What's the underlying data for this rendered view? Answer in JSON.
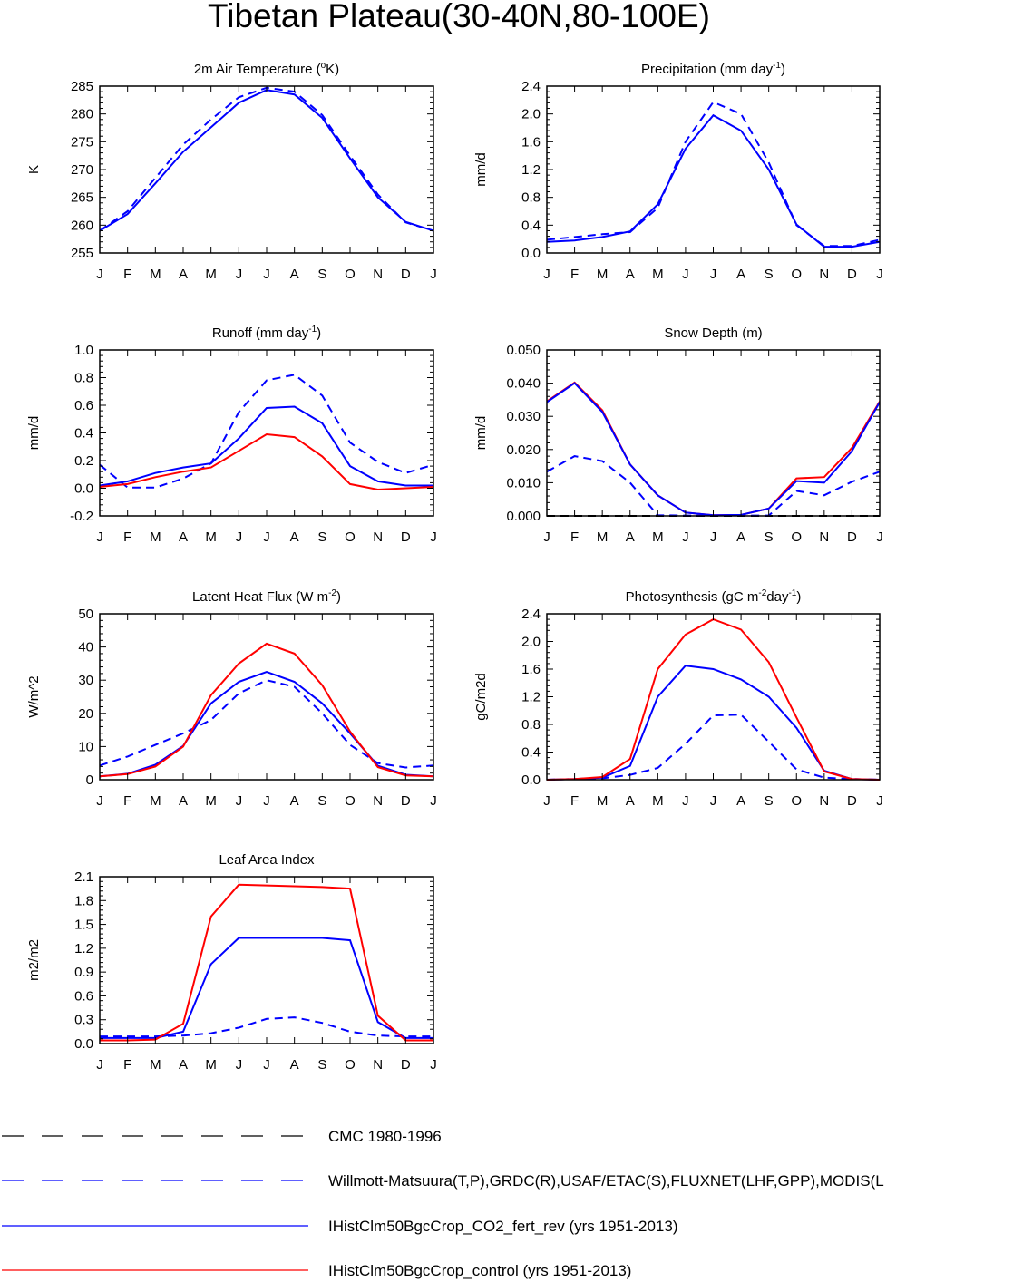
{
  "page_title": "Tibetan Plateau(30-40N,80-100E)",
  "months": [
    "J",
    "F",
    "M",
    "A",
    "M",
    "J",
    "J",
    "A",
    "S",
    "O",
    "N",
    "D",
    "J"
  ],
  "legend": [
    {
      "label": "CMC 1980-1996",
      "color": "#000000",
      "dash": true
    },
    {
      "label": "Willmott-Matsuura(T,P),GRDC(R),USAF/ETAC(S),FLUXNET(LHF,GPP),MODIS(L",
      "color": "#0000ff",
      "dash": true
    },
    {
      "label": "IHistClm50BgcCrop_CO2_fert_rev (yrs 1951-2013)",
      "color": "#0000ff",
      "dash": false
    },
    {
      "label": "IHistClm50BgcCrop_control (yrs 1951-2013)",
      "color": "#ff0000",
      "dash": false
    }
  ],
  "chart_data": [
    {
      "type": "line",
      "title": "2m Air Temperature (",
      "title_sup": "o",
      "title_tail": "K)",
      "ylabel": "K",
      "ylim": [
        255,
        285
      ],
      "yticks": [
        "255",
        "260",
        "265",
        "270",
        "275",
        "280",
        "285"
      ],
      "x": [
        "J",
        "F",
        "M",
        "A",
        "M",
        "J",
        "J",
        "A",
        "S",
        "O",
        "N",
        "D",
        "J"
      ],
      "series": [
        {
          "name": "Willmott-Matsuura(T,P),GRDC(R),USAF/ETAC(S),FLUXNET(LHF,GPP),MODIS(L",
          "color": "#0000ff",
          "dash": true,
          "values": [
            259.0,
            262.5,
            268.5,
            274.5,
            279.0,
            283.0,
            284.7,
            284.0,
            279.8,
            272.5,
            265.5,
            260.5,
            259.0
          ]
        },
        {
          "name": "IHistClm50BgcCrop_CO2_fert_rev (yrs 1951-2013)",
          "color": "#0000ff",
          "dash": false,
          "values": [
            259.0,
            262.0,
            267.5,
            273.2,
            277.6,
            282.0,
            284.3,
            283.5,
            279.3,
            272.0,
            265.0,
            260.6,
            259.0
          ]
        }
      ]
    },
    {
      "type": "line",
      "title": "Precipitation (mm day",
      "title_sup": "-1",
      "title_tail": ")",
      "ylabel": "mm/d",
      "ylim": [
        0,
        2.4
      ],
      "yticks": [
        "0.0",
        "0.4",
        "0.8",
        "1.2",
        "1.6",
        "2.0",
        "2.4"
      ],
      "x": [
        "J",
        "F",
        "M",
        "A",
        "M",
        "J",
        "J",
        "A",
        "S",
        "O",
        "N",
        "D",
        "J"
      ],
      "series": [
        {
          "name": "Willmott-Matsuura(T,P),GRDC(R),USAF/ETAC(S),FLUXNET(LHF,GPP),MODIS(L",
          "color": "#0000ff",
          "dash": true,
          "values": [
            0.19,
            0.23,
            0.27,
            0.3,
            0.65,
            1.6,
            2.17,
            2.0,
            1.3,
            0.4,
            0.1,
            0.1,
            0.19
          ]
        },
        {
          "name": "IHistClm50BgcCrop_CO2_fert_rev (yrs 1951-2013)",
          "color": "#0000ff",
          "dash": false,
          "values": [
            0.16,
            0.18,
            0.23,
            0.31,
            0.7,
            1.5,
            1.98,
            1.76,
            1.2,
            0.41,
            0.09,
            0.09,
            0.16
          ]
        }
      ]
    },
    {
      "type": "line",
      "title": "Runoff (mm day",
      "title_sup": "-1",
      "title_tail": ")",
      "ylabel": "mm/d",
      "ylim": [
        -0.2,
        1.0
      ],
      "yticks": [
        "-0.2",
        "0.0",
        "0.2",
        "0.4",
        "0.6",
        "0.8",
        "1.0"
      ],
      "x": [
        "J",
        "F",
        "M",
        "A",
        "M",
        "J",
        "J",
        "A",
        "S",
        "O",
        "N",
        "D",
        "J"
      ],
      "series": [
        {
          "name": "Willmott-Matsuura(T,P),GRDC(R),USAF/ETAC(S),FLUXNET(LHF,GPP),MODIS(L",
          "color": "#0000ff",
          "dash": true,
          "values": [
            0.17,
            0.005,
            0.005,
            0.07,
            0.18,
            0.55,
            0.78,
            0.82,
            0.67,
            0.33,
            0.19,
            0.11,
            0.17
          ]
        },
        {
          "name": "IHistClm50BgcCrop_CO2_fert_rev (yrs 1951-2013)",
          "color": "#0000ff",
          "dash": false,
          "values": [
            0.02,
            0.05,
            0.11,
            0.15,
            0.18,
            0.36,
            0.58,
            0.59,
            0.47,
            0.16,
            0.05,
            0.02,
            0.02
          ]
        },
        {
          "name": "IHistClm50BgcCrop_control (yrs 1951-2013)",
          "color": "#ff0000",
          "dash": false,
          "values": [
            0.01,
            0.03,
            0.08,
            0.12,
            0.15,
            0.27,
            0.39,
            0.37,
            0.23,
            0.03,
            -0.01,
            0.0,
            0.01
          ]
        }
      ]
    },
    {
      "type": "line",
      "title": "Snow Depth (m)",
      "title_sup": "",
      "title_tail": "",
      "ylabel": "mm/d",
      "ylim": [
        0,
        0.05
      ],
      "yticks": [
        "0.000",
        "0.010",
        "0.020",
        "0.030",
        "0.040",
        "0.050"
      ],
      "x": [
        "J",
        "F",
        "M",
        "A",
        "M",
        "J",
        "J",
        "A",
        "S",
        "O",
        "N",
        "D",
        "J"
      ],
      "series": [
        {
          "name": "CMC 1980-1996",
          "color": "#000000",
          "dash": true,
          "values": [
            0,
            0,
            0,
            0,
            0,
            0,
            0,
            0,
            0,
            0,
            0,
            0,
            0
          ]
        },
        {
          "name": "Willmott-Matsuura(T,P),GRDC(R),USAF/ETAC(S),FLUXNET(LHF,GPP),MODIS(L",
          "color": "#0000ff",
          "dash": true,
          "values": [
            0.0133,
            0.018,
            0.0165,
            0.01,
            0.0002,
            0.0001,
            0.0001,
            0.0001,
            0.0001,
            0.0075,
            0.0062,
            0.0103,
            0.0133
          ]
        },
        {
          "name": "IHistClm50BgcCrop_control (yrs 1951-2013)",
          "color": "#ff0000",
          "dash": false,
          "values": [
            0.0345,
            0.0402,
            0.0318,
            0.0155,
            0.0062,
            0.001,
            0.0002,
            0.0003,
            0.0022,
            0.0113,
            0.0117,
            0.0205,
            0.0345
          ]
        },
        {
          "name": "IHistClm50BgcCrop_CO2_fert_rev (yrs 1951-2013)",
          "color": "#0000ff",
          "dash": false,
          "values": [
            0.0343,
            0.04,
            0.0313,
            0.0155,
            0.0062,
            0.001,
            0.0002,
            0.0003,
            0.0022,
            0.0105,
            0.01,
            0.0195,
            0.0343
          ]
        }
      ]
    },
    {
      "type": "line",
      "title": "Latent Heat Flux (W m",
      "title_sup": "-2",
      "title_tail": ")",
      "ylabel": "W/m^2",
      "ylim": [
        0,
        50
      ],
      "yticks": [
        "0",
        "10",
        "20",
        "30",
        "40",
        "50"
      ],
      "x": [
        "J",
        "F",
        "M",
        "A",
        "M",
        "J",
        "J",
        "A",
        "S",
        "O",
        "N",
        "D",
        "J"
      ],
      "series": [
        {
          "name": "Willmott-Matsuura(T,P),GRDC(R),USAF/ETAC(S),FLUXNET(LHF,GPP),MODIS(L",
          "color": "#0000ff",
          "dash": true,
          "values": [
            4.3,
            7.0,
            10.5,
            14.0,
            18.0,
            26.0,
            30.0,
            28.0,
            20.0,
            10.5,
            5.0,
            3.7,
            4.3
          ]
        },
        {
          "name": "IHistClm50BgcCrop_CO2_fert_rev (yrs 1951-2013)",
          "color": "#0000ff",
          "dash": false,
          "values": [
            1.0,
            1.8,
            4.5,
            10.2,
            23.0,
            29.5,
            32.5,
            29.5,
            23.0,
            14.0,
            4.2,
            1.5,
            1.0
          ]
        },
        {
          "name": "IHistClm50BgcCrop_control (yrs 1951-2013)",
          "color": "#ff0000",
          "dash": false,
          "values": [
            1.0,
            1.7,
            4.0,
            10.0,
            25.5,
            35.0,
            41.0,
            38.0,
            28.5,
            14.5,
            3.8,
            1.3,
            1.0
          ]
        }
      ]
    },
    {
      "type": "line",
      "title": "Photosynthesis (gC m",
      "title_sup": "-2",
      "title_tail": "day",
      "title_sup2": "-1",
      "title_tail2": ")",
      "ylabel": "gC/m2d",
      "ylim": [
        0,
        2.4
      ],
      "yticks": [
        "0.0",
        "0.4",
        "0.8",
        "1.2",
        "1.6",
        "2.0",
        "2.4"
      ],
      "x": [
        "J",
        "F",
        "M",
        "A",
        "M",
        "J",
        "J",
        "A",
        "S",
        "O",
        "N",
        "D",
        "J"
      ],
      "series": [
        {
          "name": "Willmott-Matsuura(T,P),GRDC(R),USAF/ETAC(S),FLUXNET(LHF,GPP),MODIS(L",
          "color": "#0000ff",
          "dash": true,
          "values": [
            0.0,
            0.01,
            0.02,
            0.07,
            0.17,
            0.52,
            0.93,
            0.94,
            0.55,
            0.15,
            0.03,
            0.01,
            0.0
          ]
        },
        {
          "name": "IHistClm50BgcCrop_CO2_fert_rev (yrs 1951-2013)",
          "color": "#0000ff",
          "dash": false,
          "values": [
            0.0,
            0.01,
            0.03,
            0.2,
            1.2,
            1.65,
            1.6,
            1.45,
            1.2,
            0.75,
            0.13,
            0.01,
            0.0
          ]
        },
        {
          "name": "IHistClm50BgcCrop_control (yrs 1951-2013)",
          "color": "#ff0000",
          "dash": false,
          "values": [
            0.0,
            0.01,
            0.04,
            0.3,
            1.6,
            2.1,
            2.32,
            2.17,
            1.7,
            0.9,
            0.12,
            0.01,
            0.0
          ]
        }
      ]
    },
    {
      "type": "line",
      "title": "Leaf Area Index",
      "title_sup": "",
      "title_tail": "",
      "ylabel": "m2/m2",
      "ylim": [
        0,
        2.1
      ],
      "yticks": [
        "0.0",
        "0.3",
        "0.6",
        "0.9",
        "1.2",
        "1.5",
        "1.8",
        "2.1"
      ],
      "x": [
        "J",
        "F",
        "M",
        "A",
        "M",
        "J",
        "J",
        "A",
        "S",
        "O",
        "N",
        "D",
        "J"
      ],
      "series": [
        {
          "name": "Willmott-Matsuura(T,P),GRDC(R),USAF/ETAC(S),FLUXNET(LHF,GPP),MODIS(L",
          "color": "#0000ff",
          "dash": true,
          "values": [
            0.09,
            0.09,
            0.09,
            0.1,
            0.13,
            0.2,
            0.31,
            0.33,
            0.26,
            0.15,
            0.1,
            0.09,
            0.09
          ]
        },
        {
          "name": "IHistClm50BgcCrop_CO2_fert_rev (yrs 1951-2013)",
          "color": "#0000ff",
          "dash": false,
          "values": [
            0.07,
            0.07,
            0.07,
            0.15,
            1.0,
            1.33,
            1.33,
            1.33,
            1.33,
            1.3,
            0.27,
            0.07,
            0.07
          ]
        },
        {
          "name": "IHistClm50BgcCrop_control (yrs 1951-2013)",
          "color": "#ff0000",
          "dash": false,
          "values": [
            0.04,
            0.04,
            0.05,
            0.25,
            1.6,
            2.0,
            1.99,
            1.98,
            1.97,
            1.95,
            0.35,
            0.04,
            0.04
          ]
        }
      ]
    }
  ]
}
